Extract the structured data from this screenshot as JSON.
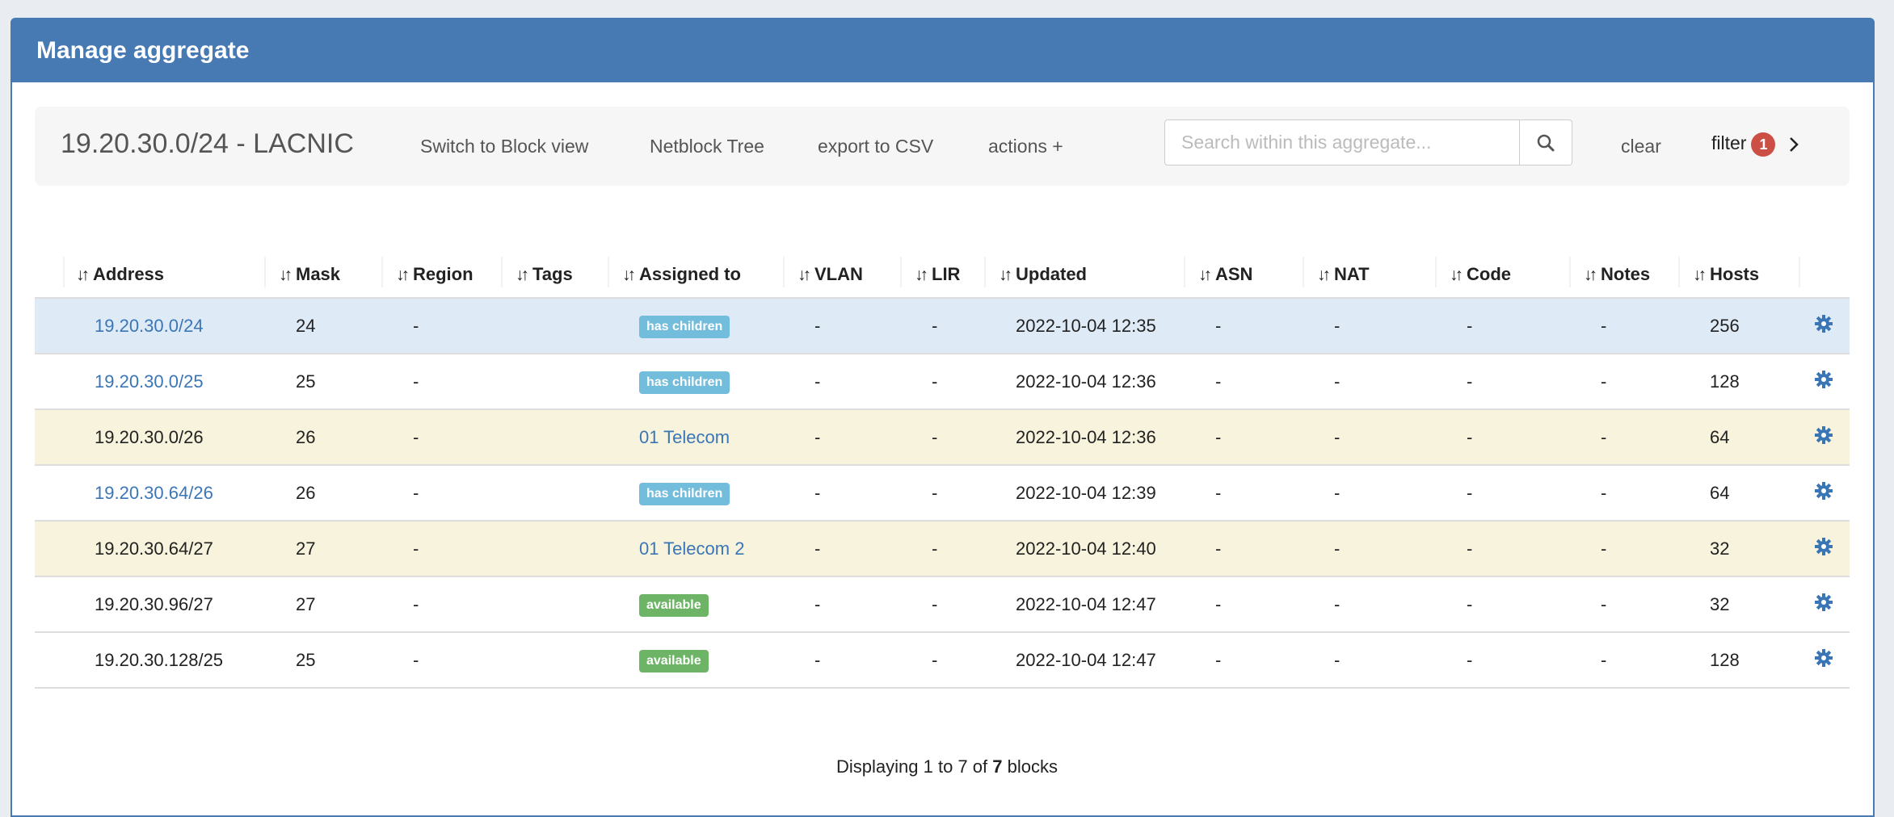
{
  "panel": {
    "title": "Manage aggregate"
  },
  "toolbar": {
    "title": "19.20.30.0/24 - LACNIC",
    "switch_view": "Switch to Block view",
    "netblock_tree": "Netblock Tree",
    "export_csv": "export to CSV",
    "actions": "actions +",
    "search_placeholder": "Search within this aggregate...",
    "search_value": "",
    "clear": "clear",
    "filter": "filter",
    "filter_count": "1"
  },
  "colors": {
    "header": "#4779b2",
    "link": "#3a76b6",
    "has_children": "#72bcdc",
    "available": "#6db466",
    "badge": "#cc4f46",
    "row_selected": "#deebf7",
    "row_assigned": "#f7f3dc"
  },
  "table": {
    "sort_icon": "sort-icon",
    "columns": [
      "Address",
      "Mask",
      "Region",
      "Tags",
      "Assigned to",
      "VLAN",
      "LIR",
      "Updated",
      "ASN",
      "NAT",
      "Code",
      "Notes",
      "Hosts"
    ],
    "rows": [
      {
        "address": "19.20.30.0/24",
        "address_link": true,
        "mask": "24",
        "region": "-",
        "tags": "",
        "assigned": "has children",
        "assigned_type": "has_children",
        "vlan": "-",
        "lir": "-",
        "updated": "2022-10-04 12:35",
        "asn": "-",
        "nat": "-",
        "code": "-",
        "notes": "-",
        "hosts": "256",
        "style": "selected"
      },
      {
        "address": "19.20.30.0/25",
        "address_link": true,
        "mask": "25",
        "region": "-",
        "tags": "",
        "assigned": "has children",
        "assigned_type": "has_children",
        "vlan": "-",
        "lir": "-",
        "updated": "2022-10-04 12:36",
        "asn": "-",
        "nat": "-",
        "code": "-",
        "notes": "-",
        "hosts": "128",
        "style": "normal"
      },
      {
        "address": "19.20.30.0/26",
        "address_link": false,
        "mask": "26",
        "region": "-",
        "tags": "",
        "assigned": "01 Telecom",
        "assigned_type": "customer",
        "vlan": "-",
        "lir": "-",
        "updated": "2022-10-04 12:36",
        "asn": "-",
        "nat": "-",
        "code": "-",
        "notes": "-",
        "hosts": "64",
        "style": "assigned"
      },
      {
        "address": "19.20.30.64/26",
        "address_link": true,
        "mask": "26",
        "region": "-",
        "tags": "",
        "assigned": "has children",
        "assigned_type": "has_children",
        "vlan": "-",
        "lir": "-",
        "updated": "2022-10-04 12:39",
        "asn": "-",
        "nat": "-",
        "code": "-",
        "notes": "-",
        "hosts": "64",
        "style": "normal"
      },
      {
        "address": "19.20.30.64/27",
        "address_link": false,
        "mask": "27",
        "region": "-",
        "tags": "",
        "assigned": "01 Telecom 2",
        "assigned_type": "customer",
        "vlan": "-",
        "lir": "-",
        "updated": "2022-10-04 12:40",
        "asn": "-",
        "nat": "-",
        "code": "-",
        "notes": "-",
        "hosts": "32",
        "style": "assigned"
      },
      {
        "address": "19.20.30.96/27",
        "address_link": false,
        "mask": "27",
        "region": "-",
        "tags": "",
        "assigned": "available",
        "assigned_type": "available",
        "vlan": "-",
        "lir": "-",
        "updated": "2022-10-04 12:47",
        "asn": "-",
        "nat": "-",
        "code": "-",
        "notes": "-",
        "hosts": "32",
        "style": "normal"
      },
      {
        "address": "19.20.30.128/25",
        "address_link": false,
        "mask": "25",
        "region": "-",
        "tags": "",
        "assigned": "available",
        "assigned_type": "available",
        "vlan": "-",
        "lir": "-",
        "updated": "2022-10-04 12:47",
        "asn": "-",
        "nat": "-",
        "code": "-",
        "notes": "-",
        "hosts": "128",
        "style": "normal"
      }
    ]
  },
  "footer": {
    "prefix": "Displaying 1 to 7 of ",
    "total": "7",
    "suffix": " blocks"
  }
}
